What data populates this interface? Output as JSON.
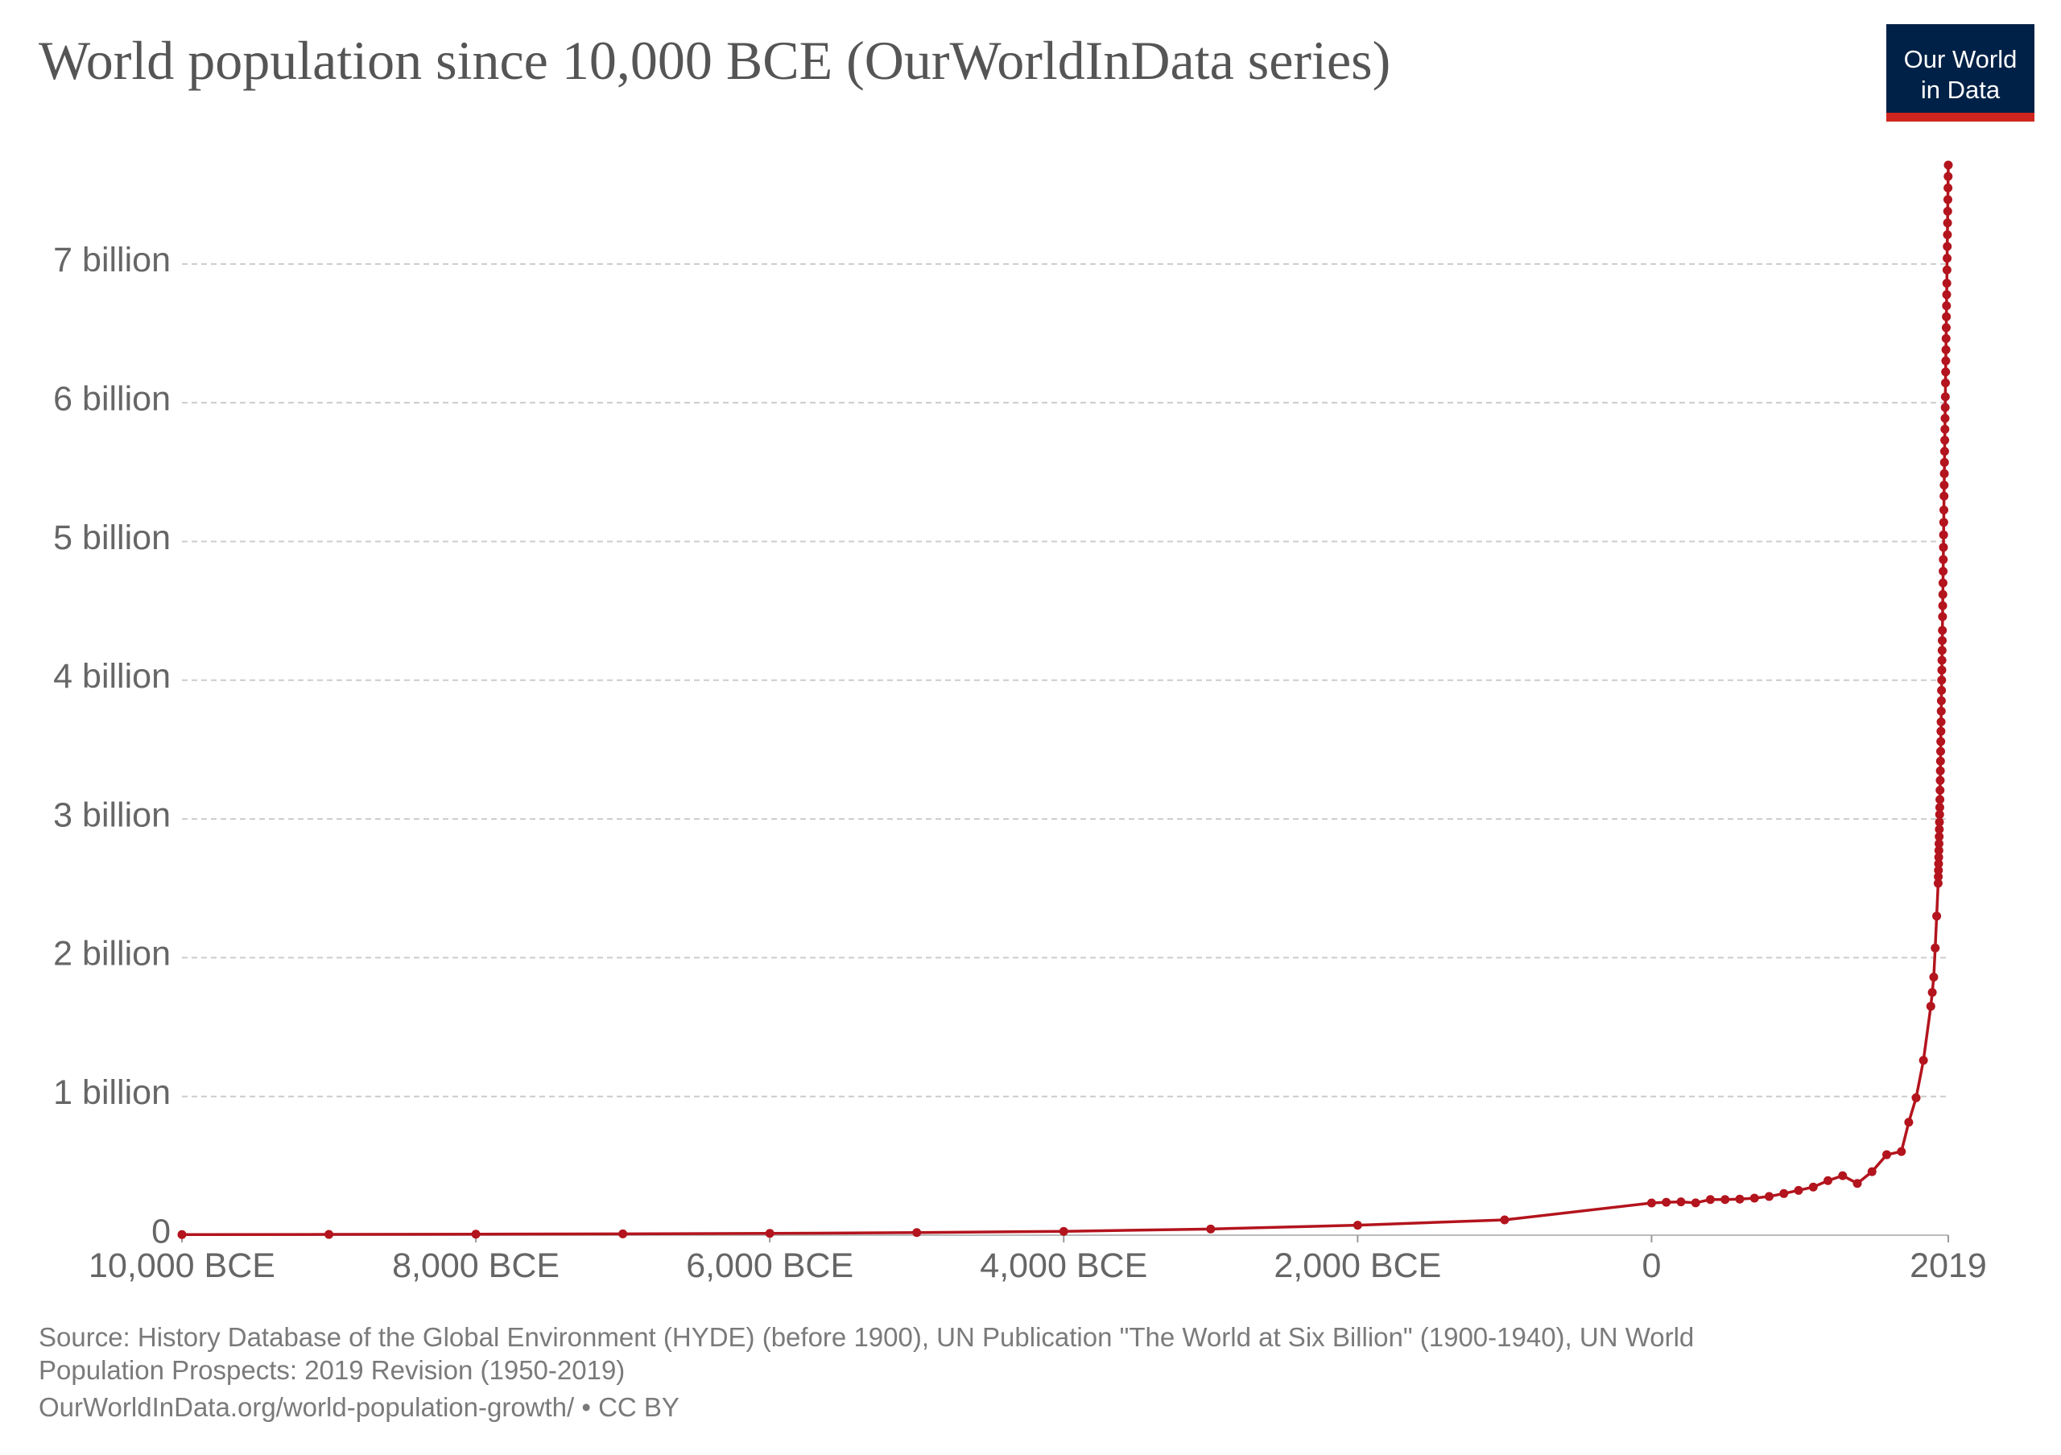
{
  "chart_data": {
    "type": "line",
    "title": "World population since 10,000 BCE (OurWorldInData series)",
    "logo": [
      "Our World",
      "in Data"
    ],
    "source": [
      "Source: History Database of the Global Environment (HYDE) (before 1900), UN Publication \"The World at Six Billion\" (1900-1940), UN World",
      "Population Prospects: 2019 Revision (1950-2019)",
      "OurWorldInData.org/world-population-growth/ • CC BY"
    ],
    "x": [
      -10000,
      -9000,
      -8000,
      -7000,
      -6000,
      -5000,
      -4000,
      -3000,
      -2000,
      -1000,
      0,
      100,
      200,
      300,
      400,
      500,
      600,
      700,
      800,
      900,
      1000,
      1100,
      1200,
      1300,
      1400,
      1500,
      1600,
      1700,
      1750,
      1800,
      1850,
      1900,
      1910,
      1920,
      1930,
      1940,
      1950,
      1951,
      1952,
      1953,
      1954,
      1955,
      1956,
      1957,
      1958,
      1959,
      1960,
      1961,
      1962,
      1963,
      1964,
      1965,
      1966,
      1967,
      1968,
      1969,
      1970,
      1971,
      1972,
      1973,
      1974,
      1975,
      1976,
      1977,
      1978,
      1979,
      1980,
      1981,
      1982,
      1983,
      1984,
      1985,
      1986,
      1987,
      1988,
      1989,
      1990,
      1991,
      1992,
      1993,
      1994,
      1995,
      1996,
      1997,
      1998,
      1999,
      2000,
      2001,
      2002,
      2003,
      2004,
      2005,
      2006,
      2007,
      2008,
      2009,
      2010,
      2011,
      2012,
      2013,
      2014,
      2015,
      2016,
      2017,
      2018,
      2019
    ],
    "series": [
      {
        "name": "World",
        "color": "#b3141d",
        "values": [
          4400000.0,
          5500000.0,
          7100000.0,
          9400000.0,
          13000000.0,
          18600000.0,
          27700000.0,
          44600000.0,
          72100000.0,
          110000000.0,
          232000000.0,
          237000000.0,
          240000000.0,
          233000000.0,
          257000000.0,
          257000000.0,
          260000000.0,
          267000000.0,
          279000000.0,
          300000000.0,
          323000000.0,
          347000000.0,
          393000000.0,
          429000000.0,
          373000000.0,
          458000000.0,
          580000000.0,
          603000000.0,
          814000000.0,
          990000000.0,
          1260000000.0,
          1650000000.0,
          1750000000.0,
          1860000000.0,
          2070000000.0,
          2300000000.0,
          2536000000.0,
          2584000000.0,
          2630000000.0,
          2677000000.0,
          2724000000.0,
          2773000000.0,
          2822000000.0,
          2873000000.0,
          2925000000.0,
          2977000000.0,
          3032000000.0,
          3083000000.0,
          3140000000.0,
          3207000000.0,
          3278000000.0,
          3347000000.0,
          3417000000.0,
          3487000000.0,
          3558000000.0,
          3632000000.0,
          3700000000.0,
          3777000000.0,
          3852000000.0,
          3927000000.0,
          4001000000.0,
          4073000000.0,
          4144000000.0,
          4215000000.0,
          4286000000.0,
          4359000000.0,
          4458000000.0,
          4537000000.0,
          4618000000.0,
          4701000000.0,
          4785000000.0,
          4870000000.0,
          4958000000.0,
          5048000000.0,
          5138000000.0,
          5227000000.0,
          5327000000.0,
          5406000000.0,
          5489000000.0,
          5570000000.0,
          5650000000.0,
          5730000000.0,
          5809000000.0,
          5888000000.0,
          5966000000.0,
          6043000000.0,
          6143000000.0,
          6222000000.0,
          6302000000.0,
          6382000000.0,
          6463000000.0,
          6541000000.0,
          6620000000.0,
          6699000000.0,
          6779000000.0,
          6861000000.0,
          6957000000.0,
          7041000000.0,
          7126000000.0,
          7211000000.0,
          7296000000.0,
          7380000000.0,
          7464000000.0,
          7548000000.0,
          7631000000.0,
          7713000000.0
        ]
      }
    ],
    "xlim": [
      -10000,
      2019
    ],
    "xticks": [
      {
        "value": -10000,
        "label": "10,000 BCE"
      },
      {
        "value": -8000,
        "label": "8,000 BCE"
      },
      {
        "value": -6000,
        "label": "6,000 BCE"
      },
      {
        "value": -4000,
        "label": "4,000 BCE"
      },
      {
        "value": -2000,
        "label": "2,000 BCE"
      },
      0,
      2019
    ],
    "ylim": [
      0,
      7800000000.0
    ],
    "yticks": [
      0,
      {
        "value": 1000000000.0,
        "label": "1 billion"
      },
      {
        "value": 2000000000.0,
        "label": "2 billion"
      },
      {
        "value": 3000000000.0,
        "label": "3 billion"
      },
      {
        "value": 4000000000.0,
        "label": "4 billion"
      },
      {
        "value": 5000000000.0,
        "label": "5 billion"
      },
      {
        "value": 6000000000.0,
        "label": "6 billion"
      },
      {
        "value": 7000000000.0,
        "label": "7 billion"
      }
    ],
    "grid": true
  }
}
